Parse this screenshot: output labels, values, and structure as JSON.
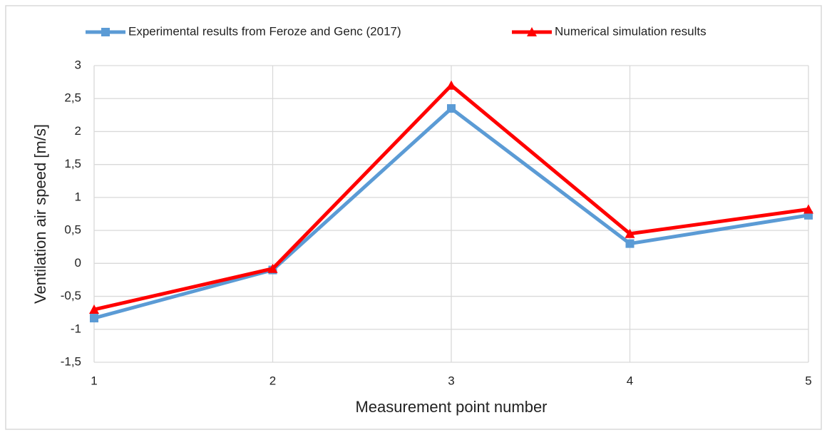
{
  "chart_data": {
    "type": "line",
    "x_label": "Measurement point number",
    "y_label": "Ventilation air speed [m/s]",
    "x": [
      1,
      2,
      3,
      4,
      5
    ],
    "xlim": [
      1,
      5
    ],
    "xticks": [
      1,
      2,
      3,
      4,
      5
    ],
    "ylim": [
      -1.5,
      3
    ],
    "yticks": [
      {
        "value": -1.5,
        "label": "-1,5"
      },
      -1,
      {
        "value": -0.5,
        "label": "-0,5"
      },
      0,
      {
        "value": 0.5,
        "label": "0,5"
      },
      1,
      {
        "value": 1.5,
        "label": "1,5"
      },
      2,
      {
        "value": 2.5,
        "label": "2,5"
      },
      3
    ],
    "grid": true,
    "legend": "top",
    "series": [
      {
        "name": "Experimental results from Feroze and Genc (2017)",
        "color": "#5b9bd5",
        "marker": "square",
        "values": [
          -0.83,
          -0.1,
          2.35,
          0.3,
          0.73
        ]
      },
      {
        "name": "Numerical simulation results",
        "color": "#ff0000",
        "marker": "triangle",
        "values": [
          -0.7,
          -0.08,
          2.7,
          0.45,
          0.82
        ]
      }
    ]
  }
}
